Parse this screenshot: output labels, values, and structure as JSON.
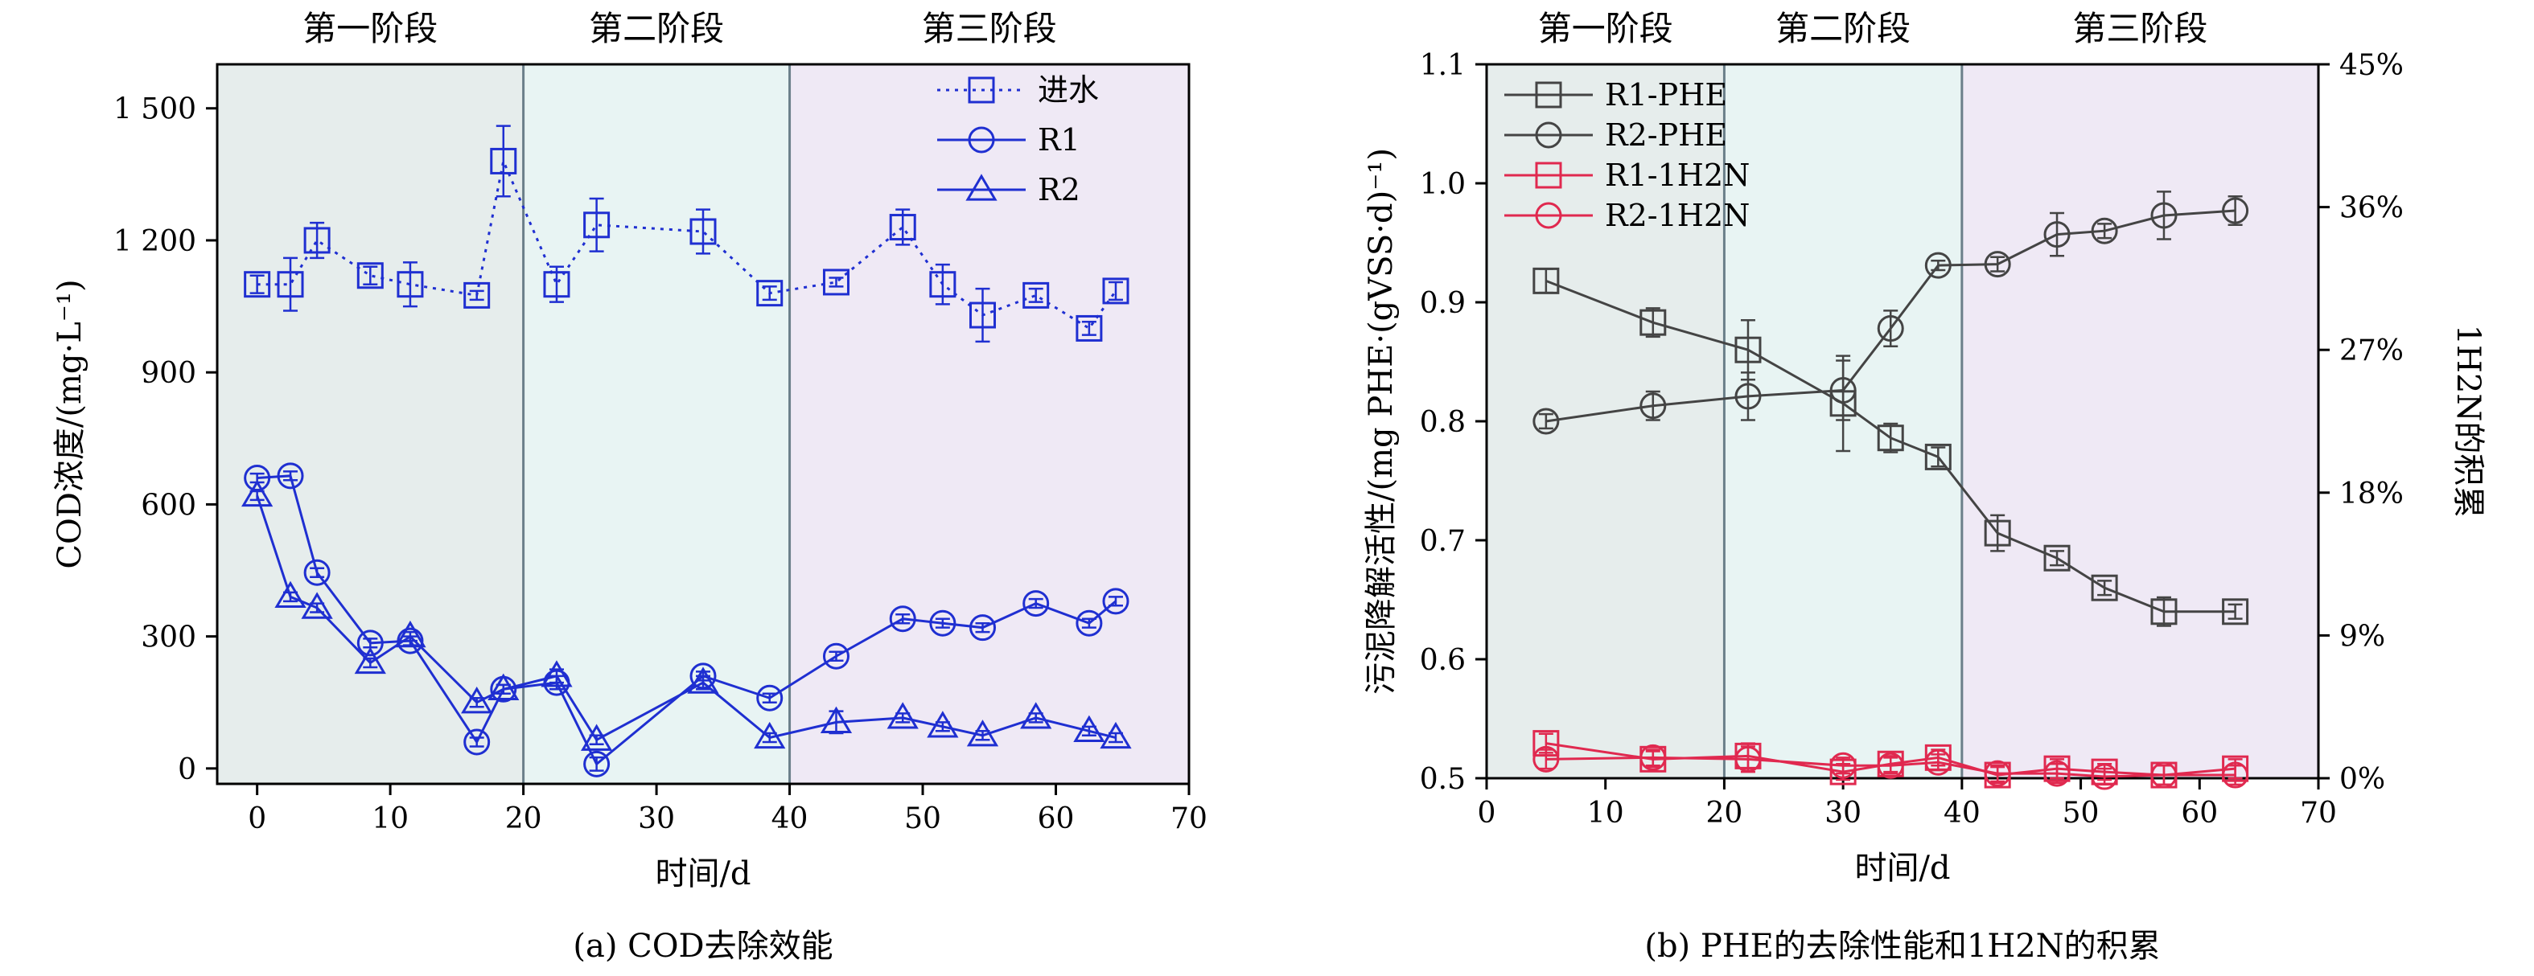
{
  "chart_data": [
    {
      "type": "line",
      "caption": "(a) COD去除效能",
      "xlabel": "时间/d",
      "ylabel": "COD浓度/(mg·L⁻¹)",
      "xlim": [
        -3,
        70
      ],
      "ylim": [
        -35,
        1600
      ],
      "xticks": [
        0,
        10,
        20,
        30,
        40,
        50,
        60,
        70
      ],
      "xtick_labels": [
        "0",
        "10",
        "20",
        "30",
        "40",
        "50",
        "60",
        "70"
      ],
      "yticks": [
        0,
        300,
        600,
        900,
        1200,
        1500
      ],
      "ytick_labels": [
        "0",
        "300",
        "600",
        "900",
        "1 200",
        "1 500"
      ],
      "stages": [
        {
          "label": "第一阶段",
          "from": -3,
          "to": 20,
          "color": "#e6edec"
        },
        {
          "label": "第二阶段",
          "from": 20,
          "to": 40,
          "color": "#e8f4f3"
        },
        {
          "label": "第三阶段",
          "from": 40,
          "to": 70,
          "color": "#efe9f5"
        }
      ],
      "legend": "top-right",
      "series": [
        {
          "name": "进水",
          "marker": "square",
          "dash": "dotted",
          "color": "#1f2fd1",
          "x": [
            0,
            2.5,
            4.5,
            8.5,
            11.5,
            16.5,
            18.5,
            22.5,
            25.5,
            33.5,
            38.5,
            43.5,
            48.5,
            51.5,
            54.5,
            58.5,
            62.5,
            64.5
          ],
          "y": [
            1100,
            1100,
            1200,
            1120,
            1100,
            1075,
            1380,
            1100,
            1235,
            1220,
            1080,
            1105,
            1230,
            1100,
            1030,
            1075,
            1000,
            1085
          ],
          "err": [
            20,
            60,
            40,
            20,
            50,
            10,
            80,
            40,
            60,
            50,
            15,
            10,
            40,
            45,
            60,
            15,
            15,
            20
          ]
        },
        {
          "name": "R1",
          "marker": "circle",
          "dash": "solid",
          "color": "#1f2fd1",
          "x": [
            0,
            2.5,
            4.5,
            8.5,
            11.5,
            16.5,
            18.5,
            22.5,
            25.5,
            33.5,
            38.5,
            43.5,
            48.5,
            51.5,
            54.5,
            58.5,
            62.5,
            64.5
          ],
          "y": [
            660,
            665,
            445,
            285,
            290,
            60,
            180,
            195,
            10,
            210,
            160,
            255,
            340,
            330,
            320,
            375,
            330,
            380
          ],
          "err": [
            10,
            10,
            10,
            10,
            10,
            10,
            10,
            15,
            15,
            10,
            10,
            10,
            10,
            10,
            10,
            10,
            10,
            10
          ]
        },
        {
          "name": "R2",
          "marker": "triangle",
          "dash": "solid",
          "color": "#1f2fd1",
          "x": [
            0,
            2.5,
            4.5,
            8.5,
            11.5,
            16.5,
            18.5,
            22.5,
            25.5,
            33.5,
            38.5,
            43.5,
            48.5,
            51.5,
            54.5,
            58.5,
            62.5,
            64.5
          ],
          "y": [
            620,
            390,
            365,
            240,
            300,
            150,
            180,
            210,
            65,
            195,
            70,
            105,
            115,
            95,
            75,
            115,
            85,
            70
          ],
          "err": [
            10,
            10,
            10,
            10,
            10,
            10,
            10,
            15,
            10,
            15,
            10,
            25,
            10,
            10,
            10,
            10,
            10,
            10
          ]
        }
      ]
    },
    {
      "type": "line",
      "caption": "(b) PHE的去除性能和1H2N的积累",
      "xlabel": "时间/d",
      "ylabel": "污泥降解活性/(mg PHE·(gVSS·d)⁻¹)",
      "ylabel2": "1H2N的积累",
      "xlim": [
        0,
        70
      ],
      "ylim": [
        0.5,
        1.1
      ],
      "ylim2": [
        0,
        45
      ],
      "xticks": [
        0,
        10,
        20,
        30,
        40,
        50,
        60,
        70
      ],
      "xtick_labels": [
        "0",
        "10",
        "20",
        "30",
        "40",
        "50",
        "60",
        "70"
      ],
      "yticks": [
        0.5,
        0.6,
        0.7,
        0.8,
        0.9,
        1.0,
        1.1
      ],
      "ytick_labels": [
        "0.5",
        "0.6",
        "0.7",
        "0.8",
        "0.9",
        "1.0",
        "1.1"
      ],
      "yticks2": [
        0,
        9,
        18,
        27,
        36,
        45
      ],
      "ytick_labels2": [
        "0%",
        "9%",
        "18%",
        "27%",
        "36%",
        "45%"
      ],
      "stages": [
        {
          "label": "第一阶段",
          "from": 0,
          "to": 20,
          "color": "#e6edec"
        },
        {
          "label": "第二阶段",
          "from": 20,
          "to": 40,
          "color": "#e8f4f3"
        },
        {
          "label": "第三阶段",
          "from": 40,
          "to": 70,
          "color": "#efe9f5"
        }
      ],
      "legend": "top-left",
      "series": [
        {
          "name": "R1-PHE",
          "marker": "square",
          "axis": "left",
          "color": "#444444",
          "x": [
            5,
            14,
            22,
            30,
            34,
            38,
            43,
            48,
            52,
            57,
            63
          ],
          "y": [
            0.918,
            0.883,
            0.86,
            0.815,
            0.786,
            0.77,
            0.706,
            0.685,
            0.66,
            0.64,
            0.64
          ],
          "err": [
            0.01,
            0.012,
            0.025,
            0.04,
            0.012,
            0.008,
            0.015,
            0.006,
            0.006,
            0.012,
            0.006
          ]
        },
        {
          "name": "R2-PHE",
          "marker": "circle",
          "axis": "left",
          "color": "#444444",
          "x": [
            5,
            14,
            22,
            30,
            34,
            38,
            43,
            48,
            52,
            57,
            63
          ],
          "y": [
            0.8,
            0.813,
            0.821,
            0.826,
            0.878,
            0.931,
            0.932,
            0.957,
            0.96,
            0.973,
            0.977
          ],
          "err": [
            0.006,
            0.012,
            0.02,
            0.025,
            0.015,
            0.004,
            0.006,
            0.018,
            0.006,
            0.02,
            0.012
          ]
        },
        {
          "name": "R1-1H2N",
          "marker": "square",
          "axis": "right",
          "color": "#e0294f",
          "x": [
            5,
            14,
            22,
            30,
            34,
            38,
            43,
            48,
            52,
            57,
            63
          ],
          "y": [
            2.2,
            1.2,
            1.4,
            0.4,
            0.9,
            1.3,
            0.2,
            0.6,
            0.4,
            0.2,
            0.6
          ],
          "err": [
            0.6,
            0.5,
            0.8,
            0.5,
            0.5,
            0.5,
            0.5,
            0.6,
            0.5,
            0.6,
            0.6
          ]
        },
        {
          "name": "R2-1H2N",
          "marker": "circle",
          "axis": "right",
          "color": "#e0294f",
          "x": [
            5,
            14,
            22,
            30,
            34,
            38,
            43,
            48,
            52,
            57,
            63
          ],
          "y": [
            1.2,
            1.3,
            1.2,
            0.8,
            0.8,
            1.0,
            0.3,
            0.3,
            0.1,
            0.2,
            0.2
          ],
          "err": [
            0.6,
            0.5,
            0.8,
            0.5,
            0.5,
            0.5,
            0.5,
            0.6,
            0.5,
            0.6,
            0.6
          ]
        }
      ]
    }
  ]
}
